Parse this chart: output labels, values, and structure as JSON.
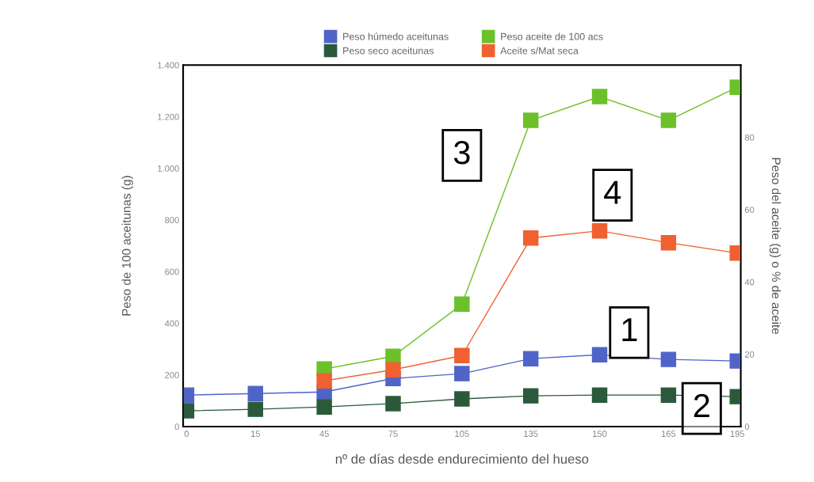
{
  "chart_data": {
    "type": "line",
    "xlabel": "nº de días desde endurecimiento del hueso",
    "ylabel": "Peso de 100 aceitunas (g)",
    "y2label": "Peso del aceite (g) o % de aceite",
    "categories": [
      "0",
      "15",
      "45",
      "75",
      "105",
      "135",
      "150",
      "165",
      "195"
    ],
    "series": [
      {
        "name": "Peso húmedo aceitunas",
        "color": "#5064c8",
        "values": [
          122,
          128,
          134,
          186,
          205,
          263,
          278,
          260,
          254
        ]
      },
      {
        "name": "Peso seco aceitunas",
        "color": "#2a5a3a",
        "values": [
          61,
          67,
          76,
          89,
          107,
          119,
          122,
          122,
          116
        ]
      },
      {
        "name": "Peso aceite de 100 acs",
        "color": "#6cc02a",
        "values": [
          null,
          null,
          223,
          272,
          474,
          1186,
          1278,
          1186,
          1314
        ]
      },
      {
        "name": "Aceite s/Mat seca",
        "color": "#f06030",
        "values": [
          null,
          null,
          177,
          220,
          275,
          730,
          758,
          712,
          672
        ]
      }
    ],
    "ylim": [
      0,
      1400
    ],
    "yticks": [
      0,
      200,
      400,
      {
        "value": 600,
        "label": "600"
      },
      {
        "value": 800,
        "label": "800"
      },
      {
        "value": 1000,
        "label": "1.000"
      },
      {
        "value": 1200,
        "label": "1.200"
      },
      {
        "value": 1400,
        "label": "1.400"
      }
    ],
    "y2lim": [
      0,
      100
    ],
    "y2ticks": [
      0,
      20,
      40,
      60,
      80
    ],
    "annotations": [
      "3",
      "4",
      "1",
      "2"
    ],
    "marker": "square",
    "line_style": "solid",
    "grid": false,
    "legend": "top"
  }
}
